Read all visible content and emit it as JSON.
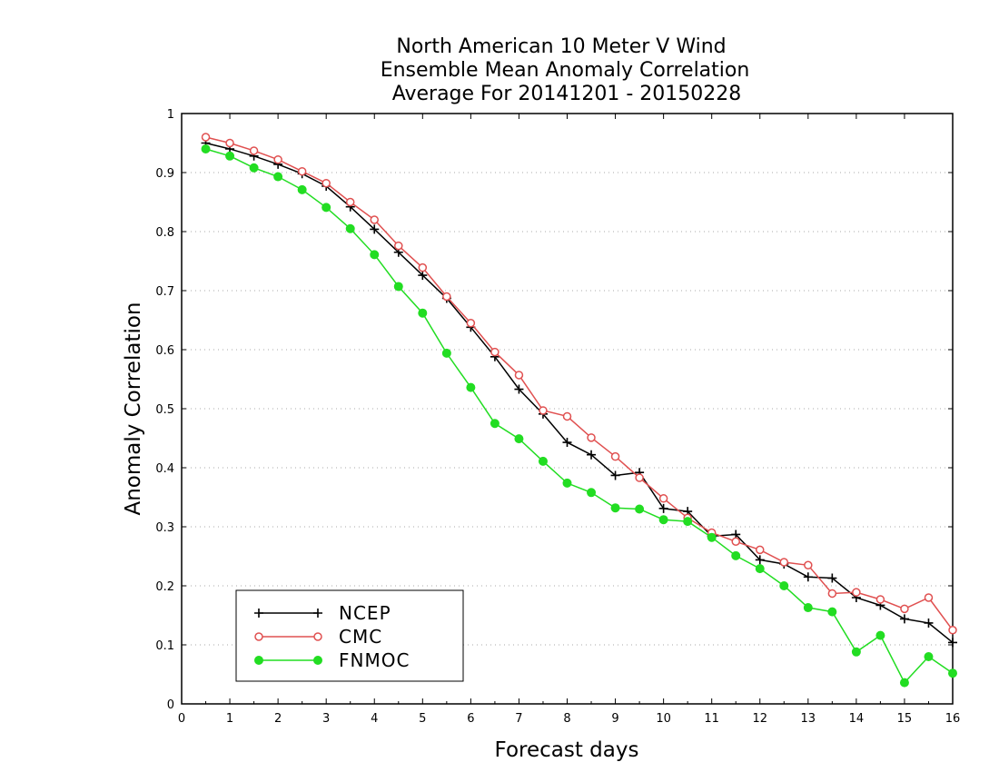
{
  "chart_data": {
    "type": "line",
    "title": [
      "North American 10 Meter V Wind",
      "Ensemble Mean Anomaly Correlation",
      "Average For 20141201 - 20150228"
    ],
    "xlabel": "Forecast days",
    "ylabel": "Anomaly Correlation",
    "xlim": [
      0,
      16
    ],
    "ylim": [
      0,
      1
    ],
    "x_ticks": [
      "0",
      "1",
      "2",
      "3",
      "4",
      "5",
      "6",
      "7",
      "8",
      "9",
      "10",
      "11",
      "12",
      "13",
      "14",
      "15",
      "16"
    ],
    "y_ticks": [
      "0",
      "0.1",
      "0.2",
      "0.3",
      "0.4",
      "0.5",
      "0.6",
      "0.7",
      "0.8",
      "0.9",
      "1"
    ],
    "grid": "horizontal dotted",
    "legend_position": "bottom-left",
    "x": [
      0.5,
      1,
      1.5,
      2,
      2.5,
      3,
      3.5,
      4,
      4.5,
      5,
      5.5,
      6,
      6.5,
      7,
      7.5,
      8,
      8.5,
      9,
      9.5,
      10,
      10.5,
      11,
      11.5,
      12,
      12.5,
      13,
      13.5,
      14,
      14.5,
      15,
      15.5,
      16
    ],
    "series": [
      {
        "name": "NCEP",
        "color": "#000000",
        "marker": "plus",
        "values": [
          0.95,
          0.94,
          0.928,
          0.914,
          0.898,
          0.877,
          0.842,
          0.804,
          0.765,
          0.726,
          0.687,
          0.638,
          0.588,
          0.533,
          0.491,
          0.443,
          0.422,
          0.387,
          0.392,
          0.331,
          0.326,
          0.284,
          0.287,
          0.244,
          0.237,
          0.215,
          0.213,
          0.18,
          0.167,
          0.144,
          0.137,
          0.104
        ]
      },
      {
        "name": "CMC",
        "color": "#e05050",
        "marker": "open-circle",
        "values": [
          0.96,
          0.95,
          0.937,
          0.922,
          0.902,
          0.882,
          0.85,
          0.82,
          0.776,
          0.739,
          0.69,
          0.645,
          0.596,
          0.557,
          0.497,
          0.487,
          0.451,
          0.419,
          0.383,
          0.348,
          0.315,
          0.29,
          0.275,
          0.261,
          0.24,
          0.235,
          0.187,
          0.189,
          0.177,
          0.161,
          0.18,
          0.125
        ]
      },
      {
        "name": "FNMOC",
        "color": "#22dd22",
        "marker": "filled-circle",
        "values": [
          0.94,
          0.928,
          0.908,
          0.893,
          0.871,
          0.841,
          0.805,
          0.761,
          0.707,
          0.662,
          0.594,
          0.536,
          0.475,
          0.449,
          0.411,
          0.374,
          0.358,
          0.332,
          0.33,
          0.312,
          0.309,
          0.282,
          0.251,
          0.229,
          0.2,
          0.163,
          0.156,
          0.088,
          0.116,
          0.036,
          0.08,
          0.052
        ]
      }
    ]
  }
}
